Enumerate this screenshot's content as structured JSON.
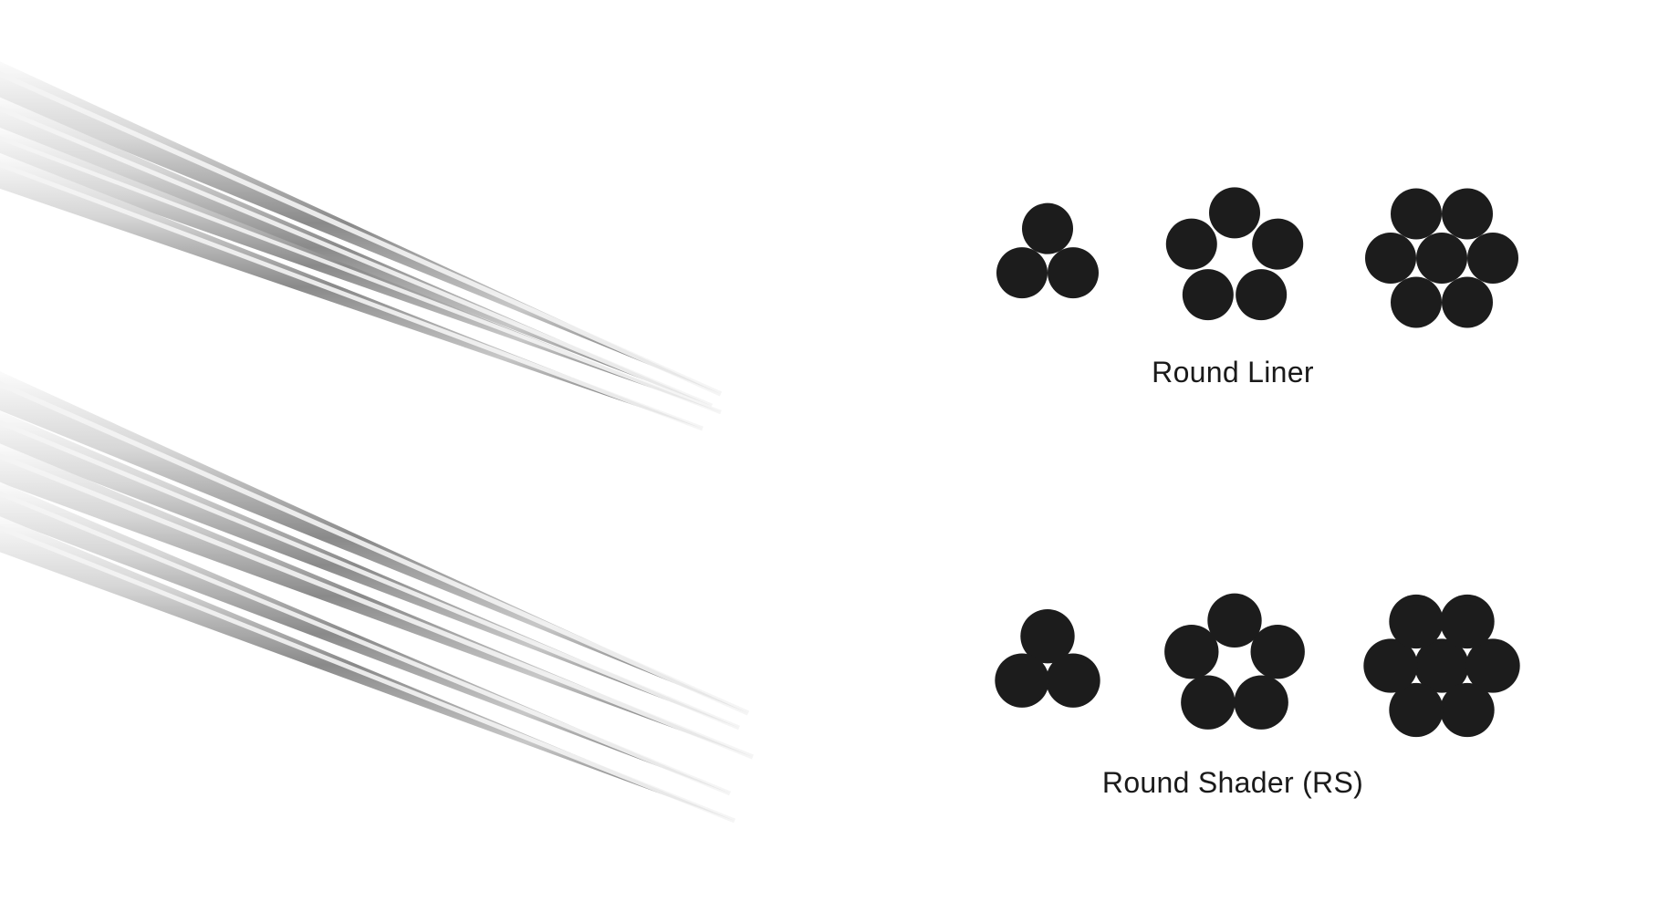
{
  "groups": [
    {
      "id": "round-liner",
      "label": "Round Liner",
      "configurations": [
        {
          "needles": 3,
          "arrangement": "triangle"
        },
        {
          "needles": 5,
          "arrangement": "ring"
        },
        {
          "needles": 7,
          "arrangement": "ring-with-center"
        }
      ]
    },
    {
      "id": "round-shader",
      "label": "Round Shader (RS)",
      "configurations": [
        {
          "needles": 3,
          "arrangement": "triangle"
        },
        {
          "needles": 5,
          "arrangement": "ring"
        },
        {
          "needles": 7,
          "arrangement": "ring-with-center"
        }
      ]
    }
  ],
  "colors": {
    "background": "#ffffff",
    "needle_dot": "#1c1c1c",
    "label_text": "#1a1a1a",
    "steel_light": "#f4f4f4",
    "steel_mid": "#b5b5b5",
    "steel_dark": "#5e5e5e"
  }
}
